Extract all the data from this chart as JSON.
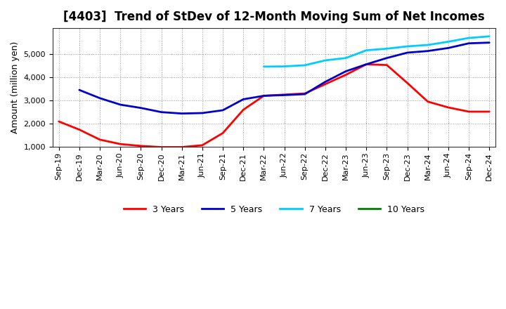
{
  "title": "[4403]  Trend of StDev of 12-Month Moving Sum of Net Incomes",
  "ylabel": "Amount (million yen)",
  "background_color": "#ffffff",
  "plot_background_color": "#ffffff",
  "ylim": [
    1000,
    6000
  ],
  "yticks": [
    1000,
    2000,
    3000,
    4000,
    5000
  ],
  "x_labels": [
    "Sep-19",
    "Dec-19",
    "Mar-20",
    "Jun-20",
    "Sep-20",
    "Dec-20",
    "Mar-21",
    "Jun-21",
    "Sep-21",
    "Dec-21",
    "Mar-22",
    "Jun-22",
    "Sep-22",
    "Dec-22",
    "Mar-23",
    "Jun-23",
    "Sep-23",
    "Dec-23",
    "Mar-24",
    "Jun-24",
    "Sep-24",
    "Dec-24"
  ],
  "series": {
    "3 Years": {
      "color": "#ff0000",
      "linewidth": 2.0,
      "data_x": [
        0,
        1,
        2,
        3,
        4,
        5,
        6,
        7,
        8,
        9,
        10,
        11,
        12,
        13,
        14,
        15,
        16,
        17,
        18,
        19,
        20,
        21
      ],
      "data_y": [
        2100,
        1750,
        1320,
        1130,
        1050,
        1000,
        1000,
        1080,
        1600,
        2600,
        3200,
        3250,
        3300,
        3700,
        4100,
        4550,
        4520,
        3750,
        2950,
        2700,
        2520,
        2520
      ]
    },
    "5 Years": {
      "color": "#0000cc",
      "linewidth": 2.0,
      "data_x": [
        1,
        2,
        3,
        4,
        5,
        6,
        7,
        8,
        9,
        10,
        11,
        12,
        13,
        14,
        15,
        16,
        17,
        18,
        19,
        20,
        21
      ],
      "data_y": [
        3450,
        3100,
        2820,
        2680,
        2500,
        2440,
        2460,
        2580,
        3050,
        3200,
        3230,
        3270,
        3800,
        4250,
        4550,
        4820,
        5050,
        5120,
        5250,
        5450,
        5480
      ]
    },
    "7 Years": {
      "color": "#00ccff",
      "linewidth": 2.0,
      "data_x": [
        10,
        11,
        12,
        13,
        14,
        15,
        16,
        17,
        18,
        19,
        20,
        21
      ],
      "data_y": [
        4450,
        4460,
        4510,
        4720,
        4820,
        5150,
        5220,
        5320,
        5380,
        5520,
        5680,
        5750
      ]
    },
    "10 Years": {
      "color": "#008000",
      "linewidth": 2.0,
      "data_x": [],
      "data_y": []
    }
  },
  "legend_entries": [
    "3 Years",
    "5 Years",
    "7 Years",
    "10 Years"
  ],
  "legend_colors": [
    "#ff0000",
    "#0000cc",
    "#00ccff",
    "#008000"
  ],
  "title_fontsize": 12,
  "ylabel_fontsize": 9,
  "tick_fontsize": 8
}
